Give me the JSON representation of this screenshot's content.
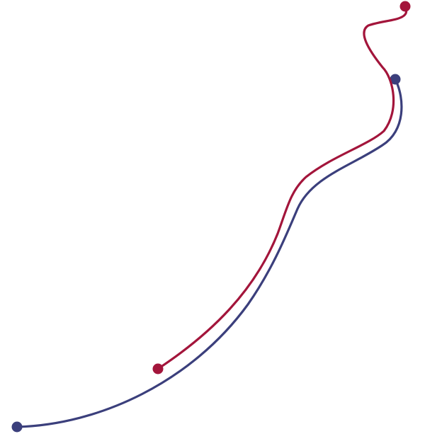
{
  "colors": {
    "background": "#ffffff",
    "red_line": "#a3153b",
    "navy_line": "#3b3f7c"
  },
  "lines": [
    {
      "name": "red-line",
      "color_key": "red_line"
    },
    {
      "name": "navy-line",
      "color_key": "navy_line"
    }
  ]
}
